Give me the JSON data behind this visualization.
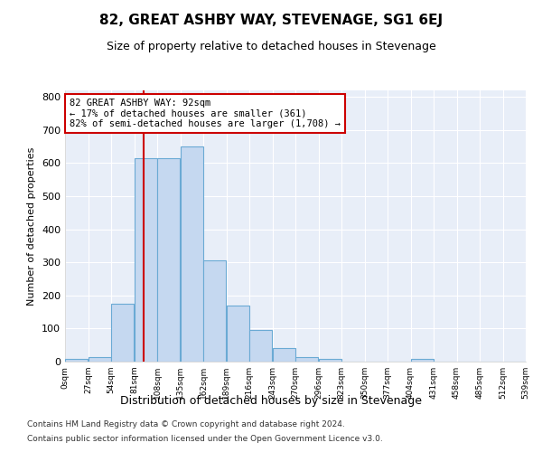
{
  "title": "82, GREAT ASHBY WAY, STEVENAGE, SG1 6EJ",
  "subtitle": "Size of property relative to detached houses in Stevenage",
  "xlabel": "Distribution of detached houses by size in Stevenage",
  "ylabel": "Number of detached properties",
  "bin_edges": [
    0,
    27,
    54,
    81,
    108,
    135,
    162,
    189,
    216,
    243,
    270,
    297,
    324,
    351,
    378,
    405,
    432,
    459,
    486,
    513,
    540
  ],
  "bin_labels": [
    "0sqm",
    "27sqm",
    "54sqm",
    "81sqm",
    "108sqm",
    "135sqm",
    "162sqm",
    "189sqm",
    "216sqm",
    "243sqm",
    "270sqm",
    "296sqm",
    "323sqm",
    "350sqm",
    "377sqm",
    "404sqm",
    "431sqm",
    "458sqm",
    "485sqm",
    "512sqm",
    "539sqm"
  ],
  "bar_heights": [
    8,
    13,
    175,
    615,
    615,
    650,
    305,
    170,
    97,
    40,
    15,
    8,
    0,
    0,
    0,
    7,
    0,
    0,
    0,
    0
  ],
  "bar_color": "#c5d8f0",
  "bar_edge_color": "#6aaad4",
  "property_size": 92,
  "vline_color": "#cc0000",
  "annotation_text": "82 GREAT ASHBY WAY: 92sqm\n← 17% of detached houses are smaller (361)\n82% of semi-detached houses are larger (1,708) →",
  "annotation_box_color": "#ffffff",
  "annotation_box_edge": "#cc0000",
  "ylim": [
    0,
    820
  ],
  "yticks": [
    0,
    100,
    200,
    300,
    400,
    500,
    600,
    700,
    800
  ],
  "bg_color": "#e8eef8",
  "footer_line1": "Contains HM Land Registry data © Crown copyright and database right 2024.",
  "footer_line2": "Contains public sector information licensed under the Open Government Licence v3.0."
}
